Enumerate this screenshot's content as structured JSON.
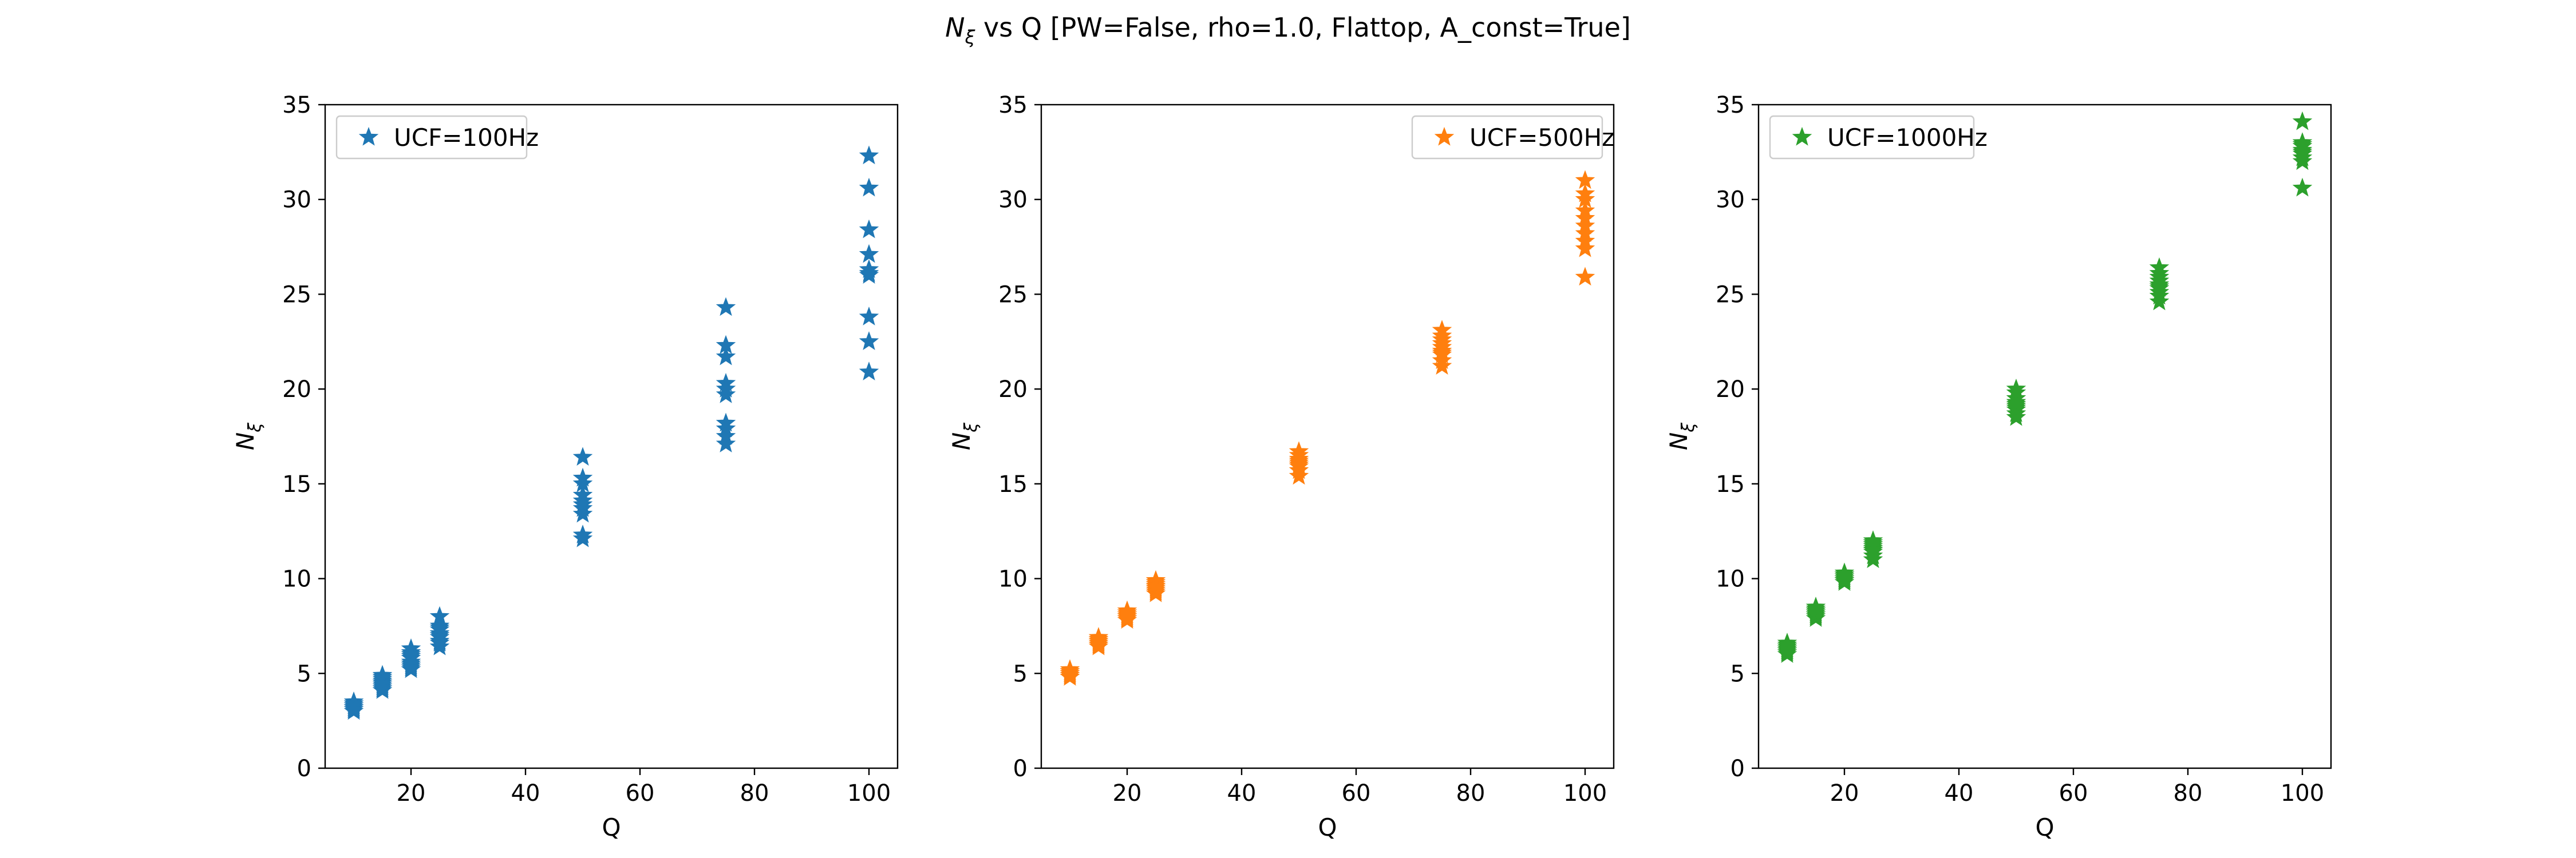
{
  "figure": {
    "suptitle_prefix": "N",
    "suptitle_subscript": "ξ",
    "suptitle_rest": " vs Q [PW=False, rho=1.0, Flattop, A_const=True]"
  },
  "chart_data": [
    {
      "type": "scatter",
      "marker": "star",
      "xlabel": "Q",
      "ylabel_main": "N",
      "ylabel_sub": "ξ",
      "xlim": [
        5,
        105
      ],
      "ylim": [
        0,
        35
      ],
      "xticks": [
        20,
        40,
        60,
        80,
        100
      ],
      "yticks": [
        0,
        5,
        10,
        15,
        20,
        25,
        30,
        35
      ],
      "grid": false,
      "legend_position": "top-left",
      "series": [
        {
          "name": "UCF=100Hz",
          "color": "#1f77b4",
          "points": [
            [
              10,
              3.0
            ],
            [
              10,
              3.2
            ],
            [
              10,
              3.3
            ],
            [
              10,
              3.4
            ],
            [
              10,
              3.1
            ],
            [
              10,
              3.5
            ],
            [
              10,
              3.3
            ],
            [
              10,
              3.2
            ],
            [
              10,
              3.4
            ],
            [
              10,
              3.1
            ],
            [
              15,
              4.1
            ],
            [
              15,
              4.3
            ],
            [
              15,
              4.5
            ],
            [
              15,
              4.7
            ],
            [
              15,
              4.9
            ],
            [
              15,
              4.2
            ],
            [
              15,
              4.4
            ],
            [
              15,
              4.6
            ],
            [
              15,
              4.8
            ],
            [
              15,
              4.5
            ],
            [
              20,
              5.2
            ],
            [
              20,
              5.4
            ],
            [
              20,
              5.6
            ],
            [
              20,
              5.9
            ],
            [
              20,
              6.1
            ],
            [
              20,
              6.3
            ],
            [
              20,
              5.5
            ],
            [
              20,
              5.8
            ],
            [
              20,
              6.0
            ],
            [
              20,
              5.3
            ],
            [
              25,
              6.4
            ],
            [
              25,
              6.6
            ],
            [
              25,
              6.9
            ],
            [
              25,
              7.1
            ],
            [
              25,
              7.3
            ],
            [
              25,
              7.5
            ],
            [
              25,
              8.0
            ],
            [
              25,
              6.7
            ],
            [
              25,
              7.0
            ],
            [
              25,
              7.4
            ],
            [
              50,
              12.1
            ],
            [
              50,
              12.3
            ],
            [
              50,
              13.4
            ],
            [
              50,
              13.7
            ],
            [
              50,
              14.1
            ],
            [
              50,
              14.4
            ],
            [
              50,
              15.0
            ],
            [
              50,
              15.3
            ],
            [
              50,
              16.4
            ],
            [
              50,
              13.9
            ],
            [
              75,
              17.1
            ],
            [
              75,
              17.5
            ],
            [
              75,
              17.9
            ],
            [
              75,
              18.2
            ],
            [
              75,
              19.7
            ],
            [
              75,
              20.3
            ],
            [
              75,
              21.7
            ],
            [
              75,
              22.3
            ],
            [
              75,
              24.3
            ],
            [
              75,
              20.0
            ],
            [
              100,
              20.9
            ],
            [
              100,
              22.5
            ],
            [
              100,
              23.8
            ],
            [
              100,
              26.0
            ],
            [
              100,
              26.3
            ],
            [
              100,
              27.1
            ],
            [
              100,
              28.4
            ],
            [
              100,
              30.6
            ],
            [
              100,
              32.3
            ],
            [
              100,
              26.1
            ]
          ]
        }
      ]
    },
    {
      "type": "scatter",
      "marker": "star",
      "xlabel": "Q",
      "ylabel_main": "N",
      "ylabel_sub": "ξ",
      "xlim": [
        5,
        105
      ],
      "ylim": [
        0,
        35
      ],
      "xticks": [
        20,
        40,
        60,
        80,
        100
      ],
      "yticks": [
        0,
        5,
        10,
        15,
        20,
        25,
        30,
        35
      ],
      "grid": false,
      "legend_position": "top-right",
      "series": [
        {
          "name": "UCF=500Hz",
          "color": "#ff7f0e",
          "points": [
            [
              10,
              4.8
            ],
            [
              10,
              4.9
            ],
            [
              10,
              5.0
            ],
            [
              10,
              5.1
            ],
            [
              10,
              5.2
            ],
            [
              10,
              4.9
            ],
            [
              10,
              5.0
            ],
            [
              10,
              5.1
            ],
            [
              10,
              4.8
            ],
            [
              10,
              5.0
            ],
            [
              15,
              6.4
            ],
            [
              15,
              6.5
            ],
            [
              15,
              6.6
            ],
            [
              15,
              6.7
            ],
            [
              15,
              6.8
            ],
            [
              15,
              6.9
            ],
            [
              15,
              6.6
            ],
            [
              15,
              6.7
            ],
            [
              15,
              6.5
            ],
            [
              15,
              6.8
            ],
            [
              20,
              7.8
            ],
            [
              20,
              7.9
            ],
            [
              20,
              8.0
            ],
            [
              20,
              8.1
            ],
            [
              20,
              8.2
            ],
            [
              20,
              8.3
            ],
            [
              20,
              8.0
            ],
            [
              20,
              8.1
            ],
            [
              20,
              7.9
            ],
            [
              20,
              8.2
            ],
            [
              25,
              9.2
            ],
            [
              25,
              9.3
            ],
            [
              25,
              9.4
            ],
            [
              25,
              9.5
            ],
            [
              25,
              9.6
            ],
            [
              25,
              9.7
            ],
            [
              25,
              9.8
            ],
            [
              25,
              9.9
            ],
            [
              25,
              9.5
            ],
            [
              25,
              9.6
            ],
            [
              50,
              15.4
            ],
            [
              50,
              15.7
            ],
            [
              50,
              15.9
            ],
            [
              50,
              16.0
            ],
            [
              50,
              16.1
            ],
            [
              50,
              16.2
            ],
            [
              50,
              16.3
            ],
            [
              50,
              16.5
            ],
            [
              50,
              16.7
            ],
            [
              50,
              16.0
            ],
            [
              75,
              21.2
            ],
            [
              75,
              21.5
            ],
            [
              75,
              21.8
            ],
            [
              75,
              22.0
            ],
            [
              75,
              22.2
            ],
            [
              75,
              22.4
            ],
            [
              75,
              22.6
            ],
            [
              75,
              22.8
            ],
            [
              75,
              23.1
            ],
            [
              75,
              21.9
            ],
            [
              100,
              25.9
            ],
            [
              100,
              27.4
            ],
            [
              100,
              27.8
            ],
            [
              100,
              28.2
            ],
            [
              100,
              28.6
            ],
            [
              100,
              29.0
            ],
            [
              100,
              29.4
            ],
            [
              100,
              30.0
            ],
            [
              100,
              30.3
            ],
            [
              100,
              31.0
            ]
          ]
        }
      ]
    },
    {
      "type": "scatter",
      "marker": "star",
      "xlabel": "Q",
      "ylabel_main": "N",
      "ylabel_sub": "ξ",
      "xlim": [
        5,
        105
      ],
      "ylim": [
        0,
        35
      ],
      "xticks": [
        20,
        40,
        60,
        80,
        100
      ],
      "yticks": [
        0,
        5,
        10,
        15,
        20,
        25,
        30,
        35
      ],
      "grid": false,
      "legend_position": "top-left",
      "series": [
        {
          "name": "UCF=1000Hz",
          "color": "#2ca02c",
          "points": [
            [
              10,
              6.0
            ],
            [
              10,
              6.1
            ],
            [
              10,
              6.2
            ],
            [
              10,
              6.3
            ],
            [
              10,
              6.4
            ],
            [
              10,
              6.5
            ],
            [
              10,
              6.6
            ],
            [
              10,
              6.2
            ],
            [
              10,
              6.3
            ],
            [
              10,
              6.4
            ],
            [
              15,
              7.9
            ],
            [
              15,
              8.0
            ],
            [
              15,
              8.1
            ],
            [
              15,
              8.2
            ],
            [
              15,
              8.3
            ],
            [
              15,
              8.4
            ],
            [
              15,
              8.5
            ],
            [
              15,
              8.1
            ],
            [
              15,
              8.2
            ],
            [
              15,
              8.3
            ],
            [
              20,
              9.8
            ],
            [
              20,
              9.9
            ],
            [
              20,
              10.0
            ],
            [
              20,
              10.1
            ],
            [
              20,
              10.2
            ],
            [
              20,
              10.3
            ],
            [
              20,
              10.0
            ],
            [
              20,
              10.1
            ],
            [
              20,
              9.9
            ],
            [
              20,
              10.2
            ],
            [
              25,
              11.0
            ],
            [
              25,
              11.2
            ],
            [
              25,
              11.4
            ],
            [
              25,
              11.5
            ],
            [
              25,
              11.6
            ],
            [
              25,
              11.7
            ],
            [
              25,
              11.8
            ],
            [
              25,
              11.9
            ],
            [
              25,
              12.0
            ],
            [
              25,
              11.5
            ],
            [
              50,
              18.5
            ],
            [
              50,
              18.7
            ],
            [
              50,
              18.9
            ],
            [
              50,
              19.0
            ],
            [
              50,
              19.1
            ],
            [
              50,
              19.3
            ],
            [
              50,
              19.5
            ],
            [
              50,
              19.8
            ],
            [
              50,
              20.0
            ],
            [
              50,
              19.2
            ],
            [
              75,
              24.6
            ],
            [
              75,
              24.9
            ],
            [
              75,
              25.1
            ],
            [
              75,
              25.3
            ],
            [
              75,
              25.5
            ],
            [
              75,
              25.7
            ],
            [
              75,
              25.9
            ],
            [
              75,
              26.1
            ],
            [
              75,
              26.4
            ],
            [
              75,
              25.4
            ],
            [
              100,
              30.6
            ],
            [
              100,
              32.0
            ],
            [
              100,
              32.2
            ],
            [
              100,
              32.4
            ],
            [
              100,
              32.6
            ],
            [
              100,
              32.8
            ],
            [
              100,
              32.9
            ],
            [
              100,
              33.0
            ],
            [
              100,
              34.1
            ],
            [
              100,
              32.5
            ]
          ]
        }
      ]
    }
  ]
}
